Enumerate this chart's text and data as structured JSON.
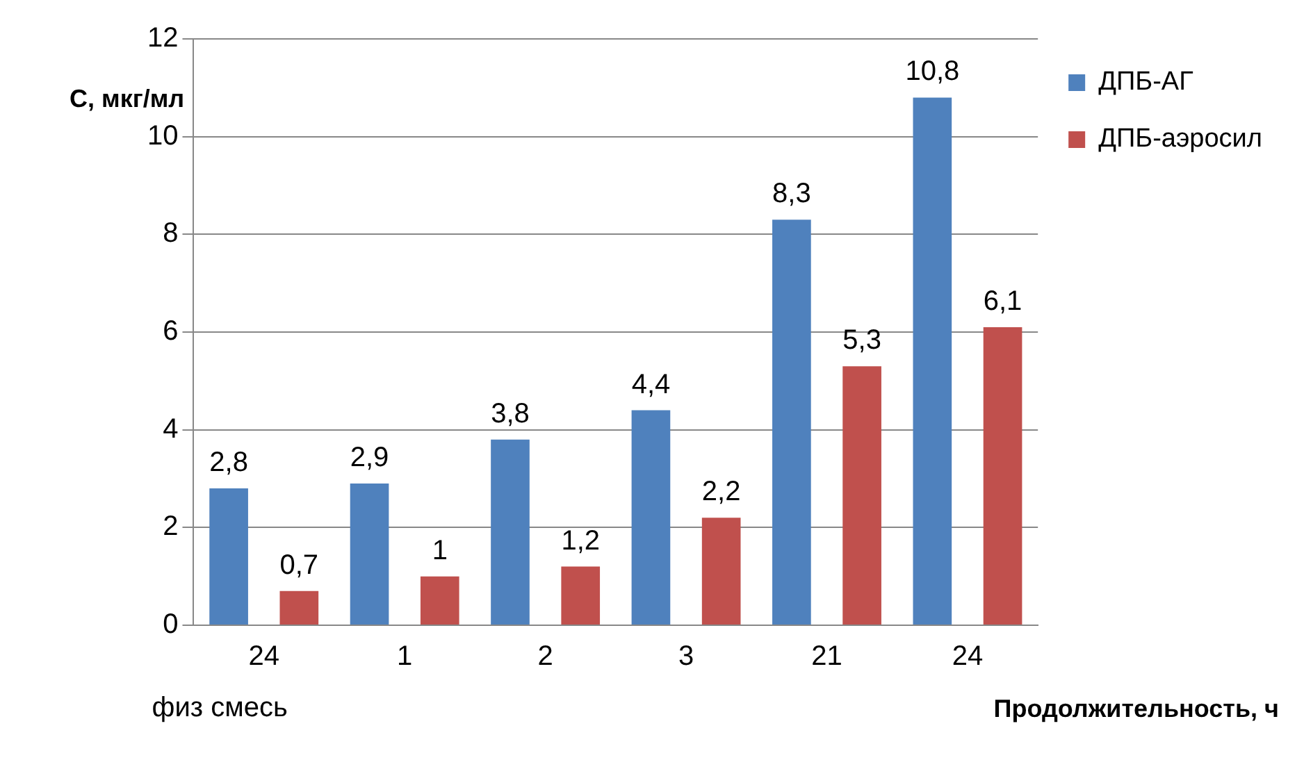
{
  "chart_data": {
    "type": "bar",
    "ylabel": "C, мкг/мл",
    "xlabel": "Продолжительность, ч",
    "categories": [
      "24",
      "1",
      "2",
      "3",
      "21",
      "24"
    ],
    "series": [
      {
        "name": "ДПБ-АГ",
        "color": "#4f81bd",
        "values": [
          2.8,
          2.9,
          3.8,
          4.4,
          8.3,
          10.8
        ],
        "value_labels": [
          "2,8",
          "2,9",
          "3,8",
          "4,4",
          "8,3",
          "10,8"
        ]
      },
      {
        "name": "ДПБ-аэросил",
        "color": "#c0504d",
        "values": [
          0.7,
          1,
          1.2,
          2.2,
          5.3,
          6.1
        ],
        "value_labels": [
          "0,7",
          "1",
          "1,2",
          "2,2",
          "5,3",
          "6,1"
        ]
      }
    ],
    "ylim": [
      0,
      12
    ],
    "yticks": [
      0,
      2,
      4,
      6,
      8,
      10,
      12
    ],
    "grid": "y",
    "legend": "top right",
    "annotations": [
      "физ смесь"
    ]
  }
}
